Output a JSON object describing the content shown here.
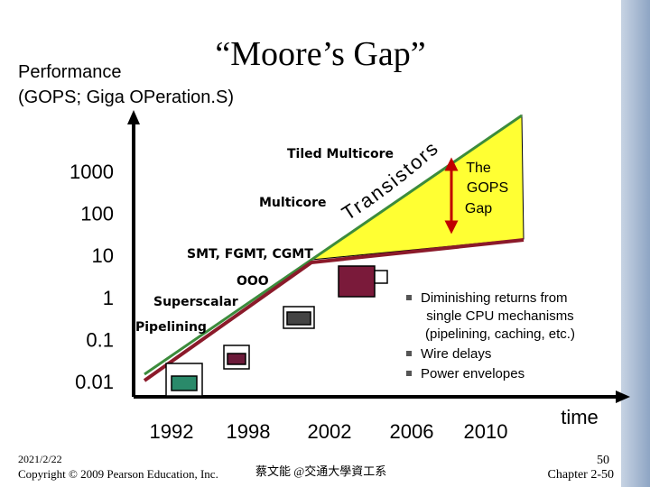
{
  "slide": {
    "title": "“Moore’s Gap”",
    "y_axis_title": [
      "Performance",
      "(GOPS; Giga OPeration.S)"
    ],
    "y_labels": [
      "1000",
      "100",
      "10",
      "1",
      "0.1",
      "0.01"
    ],
    "x_labels": [
      "1992",
      "1998",
      "2002",
      "2006",
      "2010"
    ],
    "x_axis_title": "time",
    "curve_labels": [
      "Tiled Multicore",
      "Multicore",
      "SMT, FGMT, CGMT",
      "OOO",
      "Superscalar",
      "Pipelining"
    ],
    "transistors": "Transistors",
    "gap_label": [
      "The",
      "GOPS",
      "Gap"
    ],
    "bullets": [
      [
        "Diminishing returns from",
        "single CPU mechanisms",
        "(pipelining, caching, etc.)"
      ],
      [
        "Wire delays"
      ],
      [
        "Power envelopes"
      ]
    ],
    "footer": {
      "date": "2021/2/22",
      "copyright": "Copyright © 2009 Pearson Education, Inc.",
      "author": "蔡文能 @交通大學資工系",
      "page": "50",
      "chapter": "Chapter 2-50"
    }
  }
}
